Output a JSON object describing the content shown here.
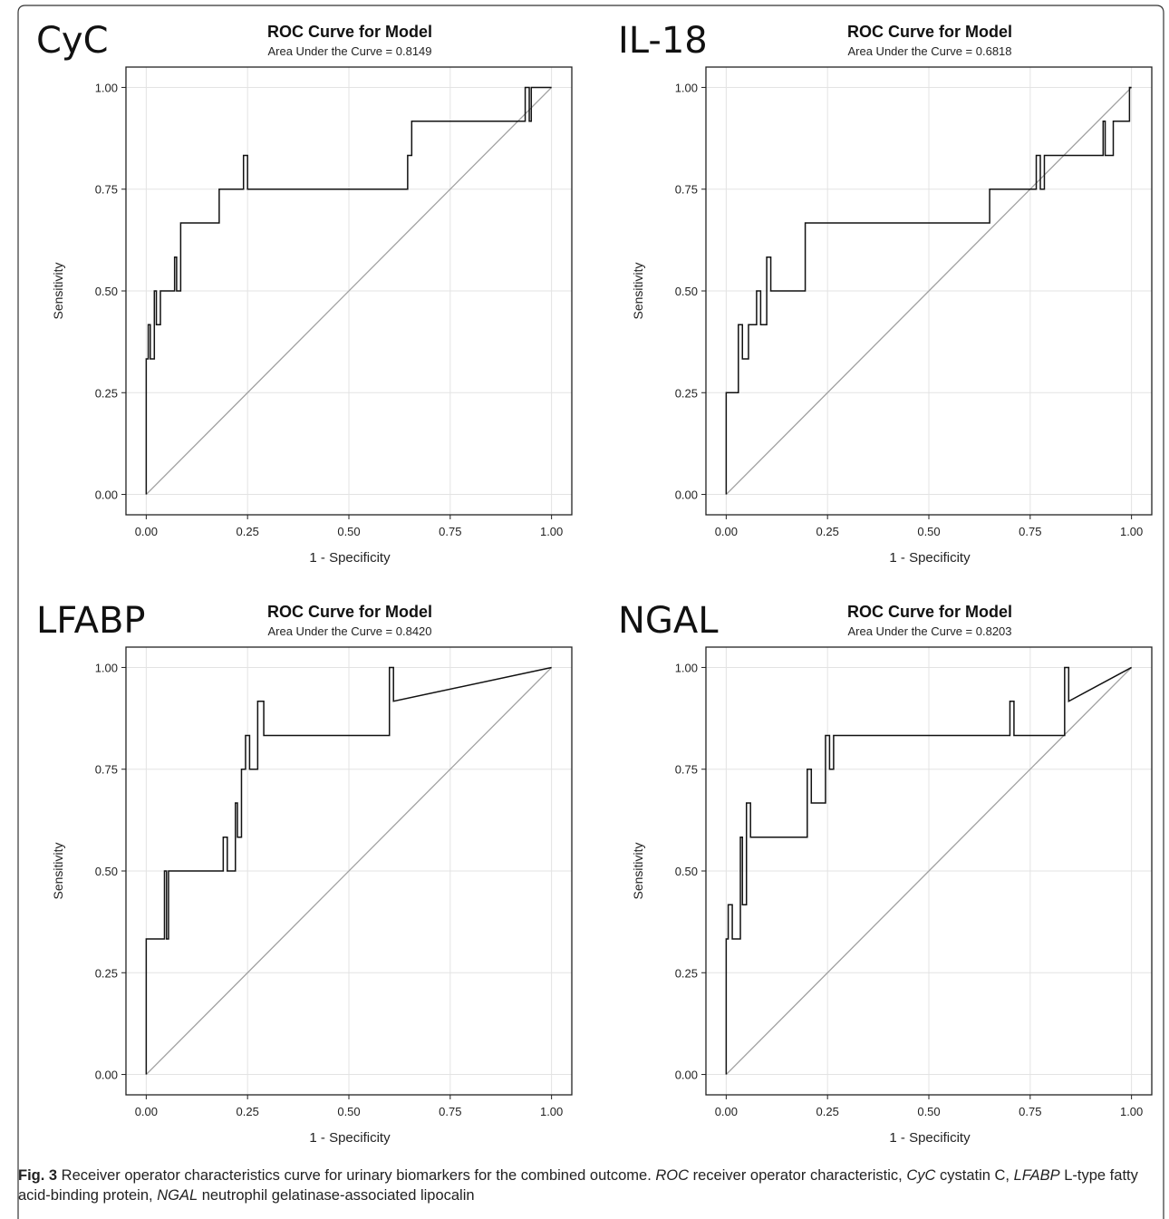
{
  "panels": [
    {
      "label": "CyC",
      "title": "ROC Curve for Model",
      "subtitle": "Area Under the Curve = 0.8149"
    },
    {
      "label": "IL-18",
      "title": "ROC Curve for Model",
      "subtitle": "Area Under the Curve = 0.6818"
    },
    {
      "label": "LFABP",
      "title": "ROC Curve for Model",
      "subtitle": "Area Under the Curve = 0.8420"
    },
    {
      "label": "NGAL",
      "title": "ROC Curve for Model",
      "subtitle": "Area Under the Curve = 0.8203"
    }
  ],
  "caption": {
    "fig_label": "Fig. 3",
    "text": " Receiver operator characteristics curve for urinary biomarkers for the combined outcome. ",
    "abbr1": "ROC",
    "def1": " receiver operator characteristic, ",
    "abbr2": "CyC",
    "def2": " cystatin C, ",
    "abbr3": "LFABP",
    "def3": " L-type fatty acid-binding protein, ",
    "abbr4": "NGAL",
    "def4": " neutrophil gelatinase-associated lipocalin"
  },
  "chart_data": [
    {
      "type": "line",
      "title": "ROC Curve for Model",
      "subtitle": "Area Under the Curve = 0.8149",
      "xlabel": "1 - Specificity",
      "ylabel": "Sensitivity",
      "xlim": [
        -0.05,
        1.05
      ],
      "ylim": [
        -0.05,
        1.05
      ],
      "xticks": [
        "0.00",
        "0.25",
        "0.50",
        "0.75",
        "1.00"
      ],
      "yticks": [
        "0.00",
        "0.25",
        "0.50",
        "0.75",
        "1.00"
      ],
      "grid": true,
      "series": [
        {
          "x": [
            0,
            0,
            0.005,
            0.005,
            0.01,
            0.01,
            0.02,
            0.02,
            0.025,
            0.025,
            0.035,
            0.035,
            0.07,
            0.07,
            0.075,
            0.075,
            0.085,
            0.085,
            0.18,
            0.18,
            0.24,
            0.24,
            0.25,
            0.25,
            0.645,
            0.645,
            0.655,
            0.655,
            0.935,
            0.935,
            0.945,
            0.945,
            0.95,
            0.95,
            1.0
          ],
          "y": [
            0,
            0.333,
            0.333,
            0.417,
            0.417,
            0.333,
            0.333,
            0.5,
            0.5,
            0.417,
            0.417,
            0.5,
            0.5,
            0.583,
            0.583,
            0.5,
            0.5,
            0.667,
            0.667,
            0.75,
            0.75,
            0.833,
            0.833,
            0.75,
            0.75,
            0.833,
            0.833,
            0.917,
            0.917,
            1.0,
            1.0,
            0.917,
            0.917,
            1.0,
            1.0
          ]
        },
        {
          "x": [
            0,
            1
          ],
          "y": [
            0,
            1
          ]
        }
      ]
    },
    {
      "type": "line",
      "title": "ROC Curve for Model",
      "subtitle": "Area Under the Curve = 0.6818",
      "xlabel": "1 - Specificity",
      "ylabel": "Sensitivity",
      "xlim": [
        -0.05,
        1.05
      ],
      "ylim": [
        -0.05,
        1.05
      ],
      "xticks": [
        "0.00",
        "0.25",
        "0.50",
        "0.75",
        "1.00"
      ],
      "yticks": [
        "0.00",
        "0.25",
        "0.50",
        "0.75",
        "1.00"
      ],
      "grid": true,
      "series": [
        {
          "x": [
            0,
            0,
            0.01,
            0.01,
            0.03,
            0.03,
            0.04,
            0.04,
            0.055,
            0.055,
            0.075,
            0.075,
            0.085,
            0.085,
            0.1,
            0.1,
            0.11,
            0.11,
            0.195,
            0.195,
            0.65,
            0.65,
            0.765,
            0.765,
            0.775,
            0.775,
            0.785,
            0.785,
            0.93,
            0.93,
            0.935,
            0.935,
            0.955,
            0.955,
            0.995,
            0.995,
            1.0
          ],
          "y": [
            0,
            0.25,
            0.25,
            0.25,
            0.25,
            0.417,
            0.417,
            0.333,
            0.333,
            0.417,
            0.417,
            0.5,
            0.5,
            0.417,
            0.417,
            0.583,
            0.583,
            0.5,
            0.5,
            0.667,
            0.667,
            0.75,
            0.75,
            0.833,
            0.833,
            0.75,
            0.75,
            0.833,
            0.833,
            0.917,
            0.917,
            0.833,
            0.833,
            0.917,
            0.917,
            1.0,
            1.0
          ]
        },
        {
          "x": [
            0,
            1
          ],
          "y": [
            0,
            1
          ]
        }
      ]
    },
    {
      "type": "line",
      "title": "ROC Curve for Model",
      "subtitle": "Area Under the Curve = 0.8420",
      "xlabel": "1 - Specificity",
      "ylabel": "Sensitivity",
      "xlim": [
        -0.05,
        1.05
      ],
      "ylim": [
        -0.05,
        1.05
      ],
      "xticks": [
        "0.00",
        "0.25",
        "0.50",
        "0.75",
        "1.00"
      ],
      "yticks": [
        "0.00",
        "0.25",
        "0.50",
        "0.75",
        "1.00"
      ],
      "grid": true,
      "series": [
        {
          "x": [
            0,
            0,
            0.01,
            0.01,
            0.045,
            0.045,
            0.05,
            0.05,
            0.055,
            0.055,
            0.19,
            0.19,
            0.2,
            0.2,
            0.22,
            0.22,
            0.225,
            0.225,
            0.235,
            0.235,
            0.245,
            0.245,
            0.255,
            0.255,
            0.275,
            0.275,
            0.29,
            0.29,
            0.6,
            0.6,
            0.61,
            0.61,
            1.0
          ],
          "y": [
            0,
            0.333,
            0.333,
            0.333,
            0.333,
            0.5,
            0.5,
            0.333,
            0.333,
            0.5,
            0.5,
            0.583,
            0.583,
            0.5,
            0.5,
            0.667,
            0.667,
            0.583,
            0.583,
            0.75,
            0.75,
            0.833,
            0.833,
            0.75,
            0.75,
            0.917,
            0.917,
            0.833,
            0.833,
            1.0,
            1.0,
            0.917,
            1.0
          ]
        },
        {
          "x": [
            0,
            1
          ],
          "y": [
            0,
            1
          ]
        }
      ]
    },
    {
      "type": "line",
      "title": "ROC Curve for Model",
      "subtitle": "Area Under the Curve = 0.8203",
      "xlabel": "1 - Specificity",
      "ylabel": "Sensitivity",
      "xlim": [
        -0.05,
        1.05
      ],
      "ylim": [
        -0.05,
        1.05
      ],
      "xticks": [
        "0.00",
        "0.25",
        "0.50",
        "0.75",
        "1.00"
      ],
      "yticks": [
        "0.00",
        "0.25",
        "0.50",
        "0.75",
        "1.00"
      ],
      "grid": true,
      "series": [
        {
          "x": [
            0,
            0,
            0.005,
            0.005,
            0.015,
            0.015,
            0.035,
            0.035,
            0.04,
            0.04,
            0.05,
            0.05,
            0.06,
            0.06,
            0.2,
            0.2,
            0.21,
            0.21,
            0.245,
            0.245,
            0.255,
            0.255,
            0.265,
            0.265,
            0.7,
            0.7,
            0.71,
            0.71,
            0.835,
            0.835,
            0.845,
            0.845,
            1.0
          ],
          "y": [
            0,
            0.333,
            0.333,
            0.417,
            0.417,
            0.333,
            0.333,
            0.583,
            0.583,
            0.417,
            0.417,
            0.667,
            0.667,
            0.583,
            0.583,
            0.75,
            0.75,
            0.667,
            0.667,
            0.833,
            0.833,
            0.75,
            0.75,
            0.833,
            0.833,
            0.917,
            0.917,
            0.833,
            0.833,
            1.0,
            1.0,
            0.917,
            1.0
          ]
        },
        {
          "x": [
            0,
            1
          ],
          "y": [
            0,
            1
          ]
        }
      ]
    }
  ]
}
